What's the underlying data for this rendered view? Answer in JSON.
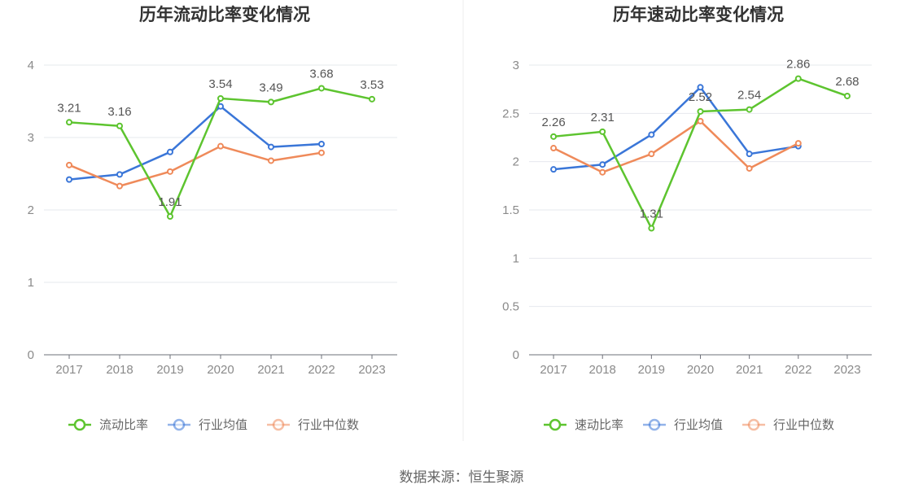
{
  "source_text": "数据来源：恒生聚源",
  "chart_data": [
    {
      "type": "line",
      "title": "历年流动比率变化情况",
      "categories": [
        "2017",
        "2018",
        "2019",
        "2020",
        "2021",
        "2022",
        "2023"
      ],
      "ylim": [
        0,
        4
      ],
      "yticks": [
        "0",
        "1",
        "2",
        "3",
        "4"
      ],
      "ytick_values": [
        0,
        1,
        2,
        3,
        4
      ],
      "legend_position": "bottom",
      "series": [
        {
          "name": "流动比率",
          "color": "#5dc42f",
          "labeled": true,
          "values": [
            3.21,
            3.16,
            1.91,
            3.54,
            3.49,
            3.68,
            3.53
          ],
          "labels": [
            "3.21",
            "3.16",
            "1.91",
            "3.54",
            "3.49",
            "3.68",
            "3.53"
          ]
        },
        {
          "name": "行业均值",
          "color": "#3a76d8",
          "labeled": false,
          "values": [
            2.42,
            2.49,
            2.8,
            3.43,
            2.87,
            2.91,
            null
          ]
        },
        {
          "name": "行业中位数",
          "color": "#ef8a5a",
          "labeled": false,
          "values": [
            2.62,
            2.33,
            2.53,
            2.88,
            2.68,
            2.79,
            null
          ]
        }
      ]
    },
    {
      "type": "line",
      "title": "历年速动比率变化情况",
      "categories": [
        "2017",
        "2018",
        "2019",
        "2020",
        "2021",
        "2022",
        "2023"
      ],
      "ylim": [
        0,
        3
      ],
      "yticks": [
        "0",
        "0.5",
        "1",
        "1.5",
        "2",
        "2.5",
        "3"
      ],
      "ytick_values": [
        0,
        0.5,
        1,
        1.5,
        2,
        2.5,
        3
      ],
      "legend_position": "bottom",
      "series": [
        {
          "name": "速动比率",
          "color": "#5dc42f",
          "labeled": true,
          "values": [
            2.26,
            2.31,
            1.31,
            2.52,
            2.54,
            2.86,
            2.68
          ],
          "labels": [
            "2.26",
            "2.31",
            "1.31",
            "2.52",
            "2.54",
            "2.86",
            "2.68"
          ]
        },
        {
          "name": "行业均值",
          "color": "#3a76d8",
          "labeled": false,
          "values": [
            1.92,
            1.97,
            2.28,
            2.77,
            2.08,
            2.16,
            null
          ]
        },
        {
          "name": "行业中位数",
          "color": "#ef8a5a",
          "labeled": false,
          "values": [
            2.14,
            1.89,
            2.08,
            2.42,
            1.93,
            2.19,
            null
          ]
        }
      ]
    }
  ]
}
